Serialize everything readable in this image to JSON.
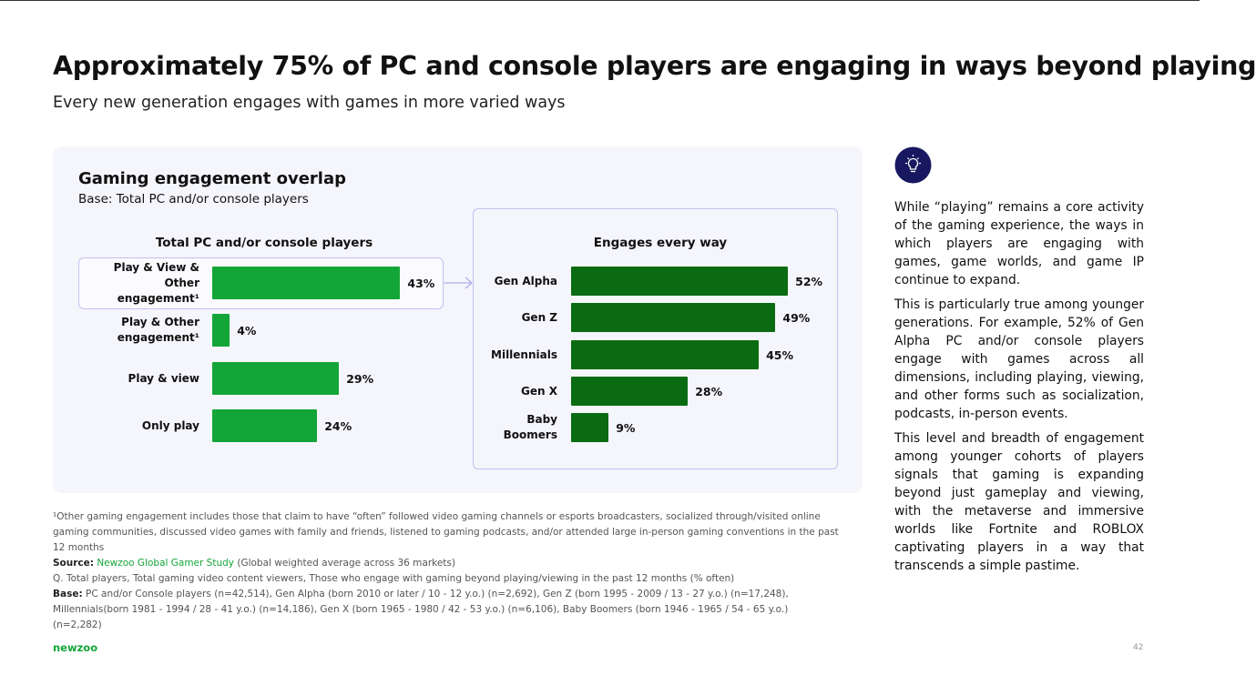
{
  "title": "Approximately 75% of PC and console players are engaging in ways beyond playing",
  "subtitle": "Every new generation engages with games in more varied ways",
  "panel": {
    "title": "Gaming engagement overlap",
    "base": "Base: Total PC and/or console players"
  },
  "chart_data": [
    {
      "type": "bar",
      "title": "Total PC and/or console players",
      "categories": [
        "Play & View & Other engagement¹",
        "Play & Other engagement¹",
        "Play & view",
        "Only play"
      ],
      "values": [
        43,
        4,
        29,
        24
      ],
      "value_labels": [
        "43%",
        "4%",
        "29%",
        "24%"
      ],
      "color": "#13a538"
    },
    {
      "type": "bar",
      "title": "Engages every way",
      "categories": [
        "Gen Alpha",
        "Gen Z",
        "Millennials",
        "Gen X",
        "Baby Boomers"
      ],
      "values": [
        52,
        49,
        45,
        28,
        9
      ],
      "value_labels": [
        "52%",
        "49%",
        "45%",
        "28%",
        "9%"
      ],
      "color": "#0a6b12"
    }
  ],
  "sidebar": {
    "paragraphs": [
      "While “playing” remains a core activity of the gaming experience, the ways in which players are engaging with games, game worlds, and game IP continue to expand.",
      "This is particularly true among younger generations. For example, 52% of Gen Alpha PC and/or console players engage with games across all dimensions, including playing, viewing, and other forms such as socialization, podcasts, in-person events.",
      "This level and breadth of engagement among younger cohorts of players signals that gaming is expanding beyond just gameplay and viewing, with the metaverse and immersive worlds like Fortnite and ROBLOX captivating players in a way that transcends a simple pastime."
    ]
  },
  "footnote": "¹Other gaming engagement includes those that claim to have “often” followed video gaming channels or esports broadcasters, socialized through/visited online gaming communities, discussed video games with family and friends, listened to gaming podcasts, and/or attended large in-person gaming conventions in the past 12 months",
  "source": {
    "label": "Source:",
    "name": "Newzoo Global Gamer Study",
    "note": "(Global weighted average across 36 markets)"
  },
  "question": "Q. Total players, Total gaming video content viewers, Those who engage with gaming beyond playing/viewing in the past 12 months (% often)",
  "base": {
    "label": "Base:",
    "text": "PC and/or Console players (n=42,514),  Gen Alpha (born 2010 or later / 10 - 12 y.o.) (n=2,692), Gen Z (born 1995 - 2009 / 13 - 27 y.o.) (n=17,248), Millennials(born 1981 - 1994 / 28 - 41 y.o.) (n=14,186), Gen X (born 1965 - 1980 / 42 - 53 y.o.) (n=6,106), Baby Boomers (born 1946 - 1965 / 54 - 65 y.o.) (n=2,282)"
  },
  "logo": "newzoo",
  "page_number": 42
}
